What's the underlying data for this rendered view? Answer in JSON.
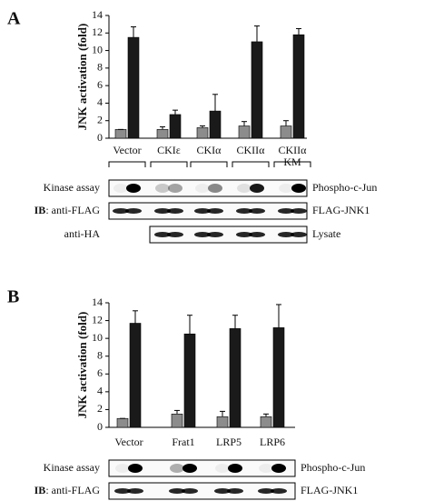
{
  "chart_data": [
    {
      "type": "bar",
      "panel": "A",
      "y_label": "JNK activation (fold)",
      "categories": [
        "Vector",
        "CKIε",
        "CKIα",
        "CKIIα",
        "CKIIα KM"
      ],
      "series": [
        {
          "color": "#8c8c8c",
          "values": [
            1.0,
            1.0,
            1.2,
            1.4,
            1.4
          ],
          "errors": [
            0,
            0.3,
            0.2,
            0.5,
            0.6
          ]
        },
        {
          "color": "#1a1a1a",
          "values": [
            11.5,
            2.7,
            3.1,
            11.0,
            11.8
          ],
          "errors": [
            1.2,
            0.5,
            1.9,
            1.8,
            0.7
          ]
        }
      ],
      "ylim": [
        0,
        14
      ],
      "yticks": [
        0,
        2,
        4,
        6,
        8,
        10,
        12,
        14
      ],
      "blots": [
        {
          "label": "Kinase assay",
          "target": "Phospho-c-Jun"
        },
        {
          "label_bold": "IB",
          "label": ": anti-FLAG",
          "target": "FLAG-JNK1"
        },
        {
          "label": "anti-HA",
          "target": "Lysate"
        }
      ]
    },
    {
      "type": "bar",
      "panel": "B",
      "y_label": "JNK activation (fold)",
      "categories": [
        "Vector",
        "Frat1",
        "LRP5",
        "LRP6"
      ],
      "series": [
        {
          "color": "#8c8c8c",
          "values": [
            1.0,
            1.5,
            1.2,
            1.2
          ],
          "errors": [
            0,
            0.4,
            0.6,
            0.3
          ]
        },
        {
          "color": "#1a1a1a",
          "values": [
            11.7,
            10.5,
            11.1,
            11.2
          ],
          "errors": [
            1.4,
            2.1,
            1.5,
            2.6
          ]
        }
      ],
      "ylim": [
        0,
        14
      ],
      "yticks": [
        0,
        2,
        4,
        6,
        8,
        10,
        12,
        14
      ],
      "blots": [
        {
          "label": "Kinase assay",
          "target": "Phospho-c-Jun"
        },
        {
          "label_bold": "IB",
          "label": ": anti-FLAG",
          "target": "FLAG-JNK1"
        }
      ]
    }
  ]
}
